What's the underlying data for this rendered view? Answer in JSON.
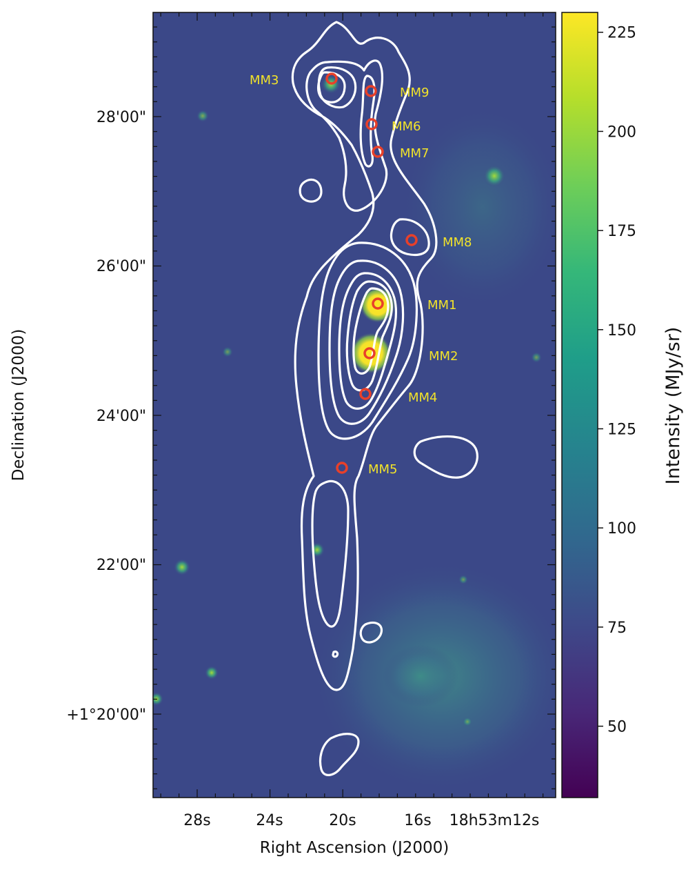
{
  "image": {
    "axes": {
      "xlabel": "Right Ascension (J2000)",
      "ylabel": "Declination (J2000)",
      "x_ticks": [
        "28s",
        "24s",
        "20s",
        "16s",
        "18h53m12s"
      ],
      "y_ticks": [
        "+1°20'00\"",
        "22'00\"",
        "24'00\"",
        "26'00\"",
        "28'00\""
      ]
    },
    "colorbar": {
      "label": "Intensity (MJy/sr)",
      "range": [
        32,
        230
      ],
      "ticks": [
        "50",
        "75",
        "100",
        "125",
        "150",
        "175",
        "200",
        "225"
      ],
      "tick_values": [
        50,
        75,
        100,
        125,
        150,
        175,
        200,
        225
      ],
      "colormap": [
        "#440154",
        "#482878",
        "#3e4989",
        "#31688e",
        "#26828e",
        "#1f9e89",
        "#35b779",
        "#6ece58",
        "#b5de2b",
        "#fde725"
      ]
    },
    "sources": [
      {
        "name": "MM1"
      },
      {
        "name": "MM2"
      },
      {
        "name": "MM3"
      },
      {
        "name": "MM4"
      },
      {
        "name": "MM5"
      },
      {
        "name": "MM6"
      },
      {
        "name": "MM7"
      },
      {
        "name": "MM8"
      },
      {
        "name": "MM9"
      }
    ],
    "colors": {
      "background_field": "#3b4888",
      "contour": "#ffffff",
      "marker": "#e8402a",
      "label": "#f2e32a"
    }
  }
}
